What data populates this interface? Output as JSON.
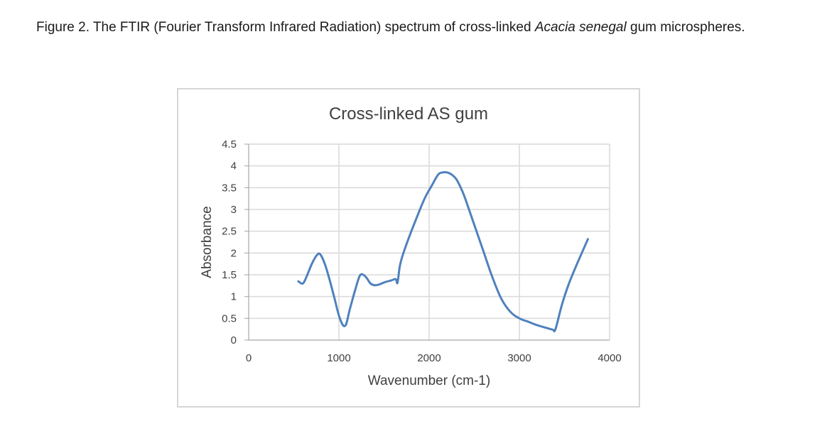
{
  "caption": {
    "figure_label": "Figure 2",
    "text_before": ". The FTIR (Fourier Transform Infrared Radiation) spectrum of cross-linked ",
    "italic_text": "Acacia senegal",
    "text_after": " gum microspheres."
  },
  "colors": {
    "series_line": "#4f81bd",
    "grid": "#d9d9d9",
    "frame": "#c8c8c8",
    "text": "#404040"
  },
  "chart_data": {
    "type": "line",
    "title": "Cross-linked AS gum",
    "xlabel": "Wavenumber (cm-1)",
    "ylabel": "Absorbance",
    "xlim": [
      0,
      4000
    ],
    "ylim": [
      0,
      4.5
    ],
    "xticks": [
      "0",
      "1000",
      "2000",
      "3000",
      "4000"
    ],
    "yticks": [
      "0",
      "0.5",
      "1",
      "1.5",
      "2",
      "2.5",
      "3",
      "3.5",
      "4",
      "4.5"
    ],
    "grid": true,
    "legend": false,
    "series": [
      {
        "x": [
          550,
          600,
          640,
          700,
          760,
          800,
          860,
          940,
          1010,
          1070,
          1120,
          1180,
          1230,
          1270,
          1310,
          1350,
          1400,
          1450,
          1510,
          1580,
          1630,
          1650,
          1680,
          1740,
          1850,
          1950,
          2030,
          2100,
          2150,
          2200,
          2250,
          2300,
          2350,
          2400,
          2500,
          2600,
          2700,
          2800,
          2900,
          3000,
          3100,
          3200,
          3300,
          3370,
          3400,
          3470,
          3550,
          3650,
          3760
        ],
        "y": [
          1.35,
          1.3,
          1.45,
          1.75,
          1.96,
          1.95,
          1.65,
          1.05,
          0.5,
          0.33,
          0.7,
          1.15,
          1.47,
          1.5,
          1.42,
          1.3,
          1.26,
          1.28,
          1.33,
          1.37,
          1.4,
          1.32,
          1.75,
          2.15,
          2.75,
          3.25,
          3.55,
          3.8,
          3.85,
          3.85,
          3.8,
          3.7,
          3.5,
          3.25,
          2.65,
          2.05,
          1.45,
          0.95,
          0.65,
          0.5,
          0.42,
          0.34,
          0.28,
          0.24,
          0.25,
          0.8,
          1.3,
          1.8,
          2.32
        ]
      }
    ]
  }
}
